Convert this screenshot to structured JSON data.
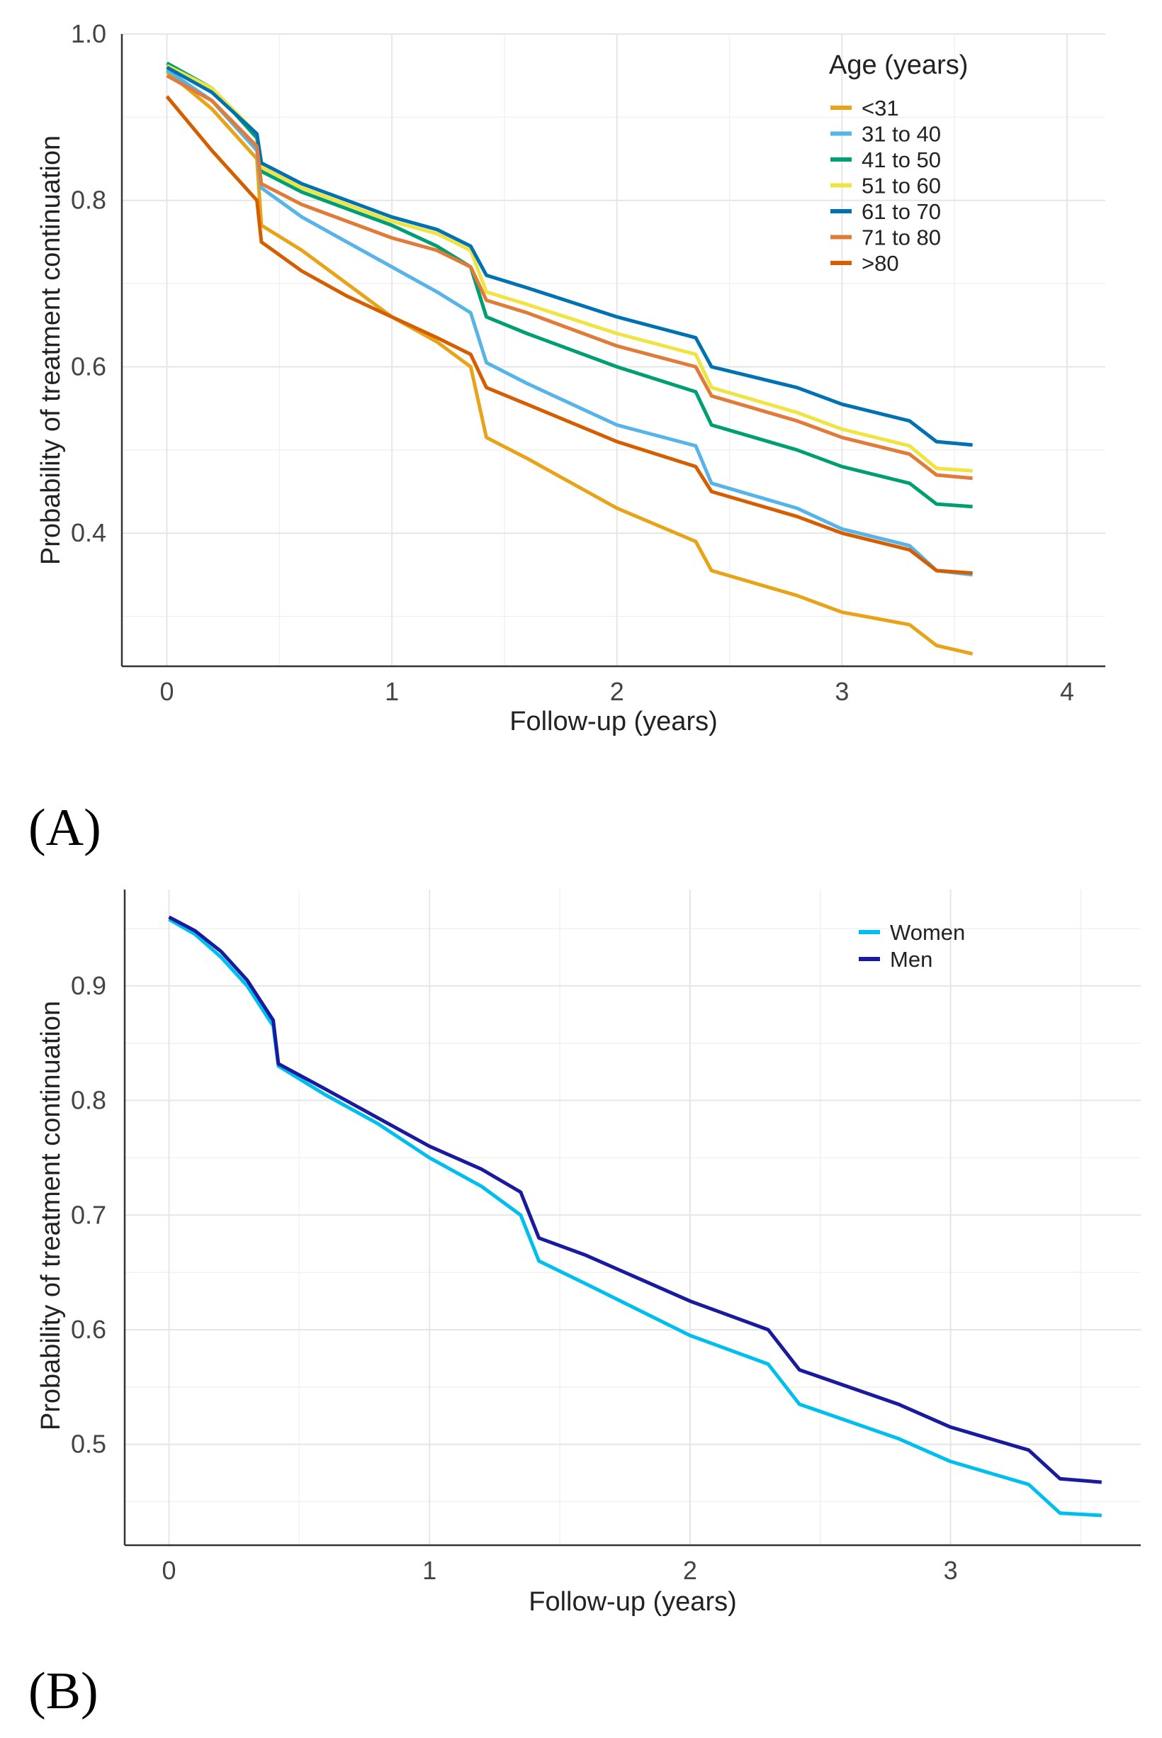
{
  "chart_data": [
    {
      "type": "line",
      "panel_label": "(A)",
      "xlabel": "Follow-up (years)",
      "ylabel": "Probability of treatment continuation",
      "xlim": [
        -0.2,
        4.17
      ],
      "ylim": [
        0.24,
        1.0
      ],
      "xticks": [
        0,
        1,
        2,
        3,
        4
      ],
      "xtick_labels": [
        "0",
        "1",
        "2",
        "3",
        "4"
      ],
      "yticks": [
        0.4,
        0.6,
        0.8,
        1.0
      ],
      "ytick_labels": [
        "0.4",
        "0.6",
        "0.8",
        "1.0"
      ],
      "grid": true,
      "legend_title": "Age (years)",
      "legend_position": "top-right",
      "series": [
        {
          "name": "<31",
          "color": "#E8A317",
          "x": [
            0,
            0.2,
            0.4,
            0.42,
            0.6,
            0.8,
            1.0,
            1.2,
            1.35,
            1.42,
            1.6,
            2.0,
            2.35,
            2.42,
            2.8,
            3.0,
            3.3,
            3.42,
            3.58
          ],
          "y": [
            0.955,
            0.91,
            0.85,
            0.77,
            0.74,
            0.7,
            0.66,
            0.63,
            0.6,
            0.515,
            0.49,
            0.43,
            0.39,
            0.355,
            0.325,
            0.305,
            0.29,
            0.265,
            0.255
          ]
        },
        {
          "name": "31 to 40",
          "color": "#56B4E9",
          "x": [
            0,
            0.2,
            0.4,
            0.42,
            0.6,
            0.8,
            1.0,
            1.2,
            1.35,
            1.42,
            1.6,
            2.0,
            2.35,
            2.42,
            2.8,
            3.0,
            3.3,
            3.42,
            3.58
          ],
          "y": [
            0.957,
            0.92,
            0.86,
            0.815,
            0.78,
            0.75,
            0.72,
            0.69,
            0.665,
            0.605,
            0.58,
            0.53,
            0.505,
            0.46,
            0.43,
            0.405,
            0.385,
            0.355,
            0.35
          ]
        },
        {
          "name": "41 to 50",
          "color": "#009E73",
          "x": [
            0,
            0.2,
            0.4,
            0.42,
            0.6,
            0.8,
            1.0,
            1.2,
            1.35,
            1.42,
            1.6,
            2.0,
            2.35,
            2.42,
            2.8,
            3.0,
            3.3,
            3.42,
            3.58
          ],
          "y": [
            0.965,
            0.935,
            0.875,
            0.835,
            0.81,
            0.79,
            0.77,
            0.745,
            0.72,
            0.66,
            0.64,
            0.6,
            0.57,
            0.53,
            0.5,
            0.48,
            0.46,
            0.435,
            0.432
          ]
        },
        {
          "name": "51 to 60",
          "color": "#F0E442",
          "x": [
            0,
            0.2,
            0.4,
            0.42,
            0.6,
            0.8,
            1.0,
            1.2,
            1.35,
            1.42,
            1.6,
            2.0,
            2.35,
            2.42,
            2.8,
            3.0,
            3.3,
            3.42,
            3.58
          ],
          "y": [
            0.962,
            0.935,
            0.88,
            0.84,
            0.815,
            0.795,
            0.775,
            0.76,
            0.74,
            0.69,
            0.675,
            0.64,
            0.615,
            0.575,
            0.545,
            0.525,
            0.505,
            0.478,
            0.475
          ]
        },
        {
          "name": "61 to 70",
          "color": "#0072B2",
          "x": [
            0,
            0.2,
            0.4,
            0.42,
            0.6,
            0.8,
            1.0,
            1.2,
            1.35,
            1.42,
            1.6,
            2.0,
            2.35,
            2.42,
            2.8,
            3.0,
            3.3,
            3.42,
            3.58
          ],
          "y": [
            0.96,
            0.93,
            0.88,
            0.845,
            0.82,
            0.8,
            0.78,
            0.765,
            0.745,
            0.71,
            0.695,
            0.66,
            0.635,
            0.6,
            0.575,
            0.555,
            0.535,
            0.51,
            0.506
          ]
        },
        {
          "name": "71 to 80",
          "color": "#E07B39",
          "x": [
            0,
            0.2,
            0.4,
            0.42,
            0.6,
            0.8,
            1.0,
            1.2,
            1.35,
            1.42,
            1.6,
            2.0,
            2.35,
            2.42,
            2.8,
            3.0,
            3.3,
            3.42,
            3.58
          ],
          "y": [
            0.95,
            0.92,
            0.865,
            0.82,
            0.795,
            0.775,
            0.755,
            0.74,
            0.72,
            0.68,
            0.665,
            0.625,
            0.6,
            0.565,
            0.535,
            0.515,
            0.495,
            0.47,
            0.466
          ]
        },
        {
          "name": ">80",
          "color": "#D55E00",
          "x": [
            0,
            0.2,
            0.4,
            0.42,
            0.6,
            0.8,
            1.0,
            1.2,
            1.35,
            1.42,
            1.6,
            2.0,
            2.35,
            2.42,
            2.8,
            3.0,
            3.3,
            3.42,
            3.58
          ],
          "y": [
            0.925,
            0.86,
            0.8,
            0.75,
            0.715,
            0.685,
            0.66,
            0.635,
            0.615,
            0.575,
            0.555,
            0.51,
            0.48,
            0.45,
            0.42,
            0.4,
            0.38,
            0.355,
            0.352
          ]
        }
      ]
    },
    {
      "type": "line",
      "panel_label": "(B)",
      "xlabel": "Follow-up (years)",
      "ylabel": "Probability of treatment continuation",
      "xlim": [
        -0.17,
        3.73
      ],
      "ylim": [
        0.412,
        0.984
      ],
      "xticks": [
        0,
        1,
        2,
        3
      ],
      "xtick_labels": [
        "0",
        "1",
        "2",
        "3"
      ],
      "yticks": [
        0.5,
        0.6,
        0.7,
        0.8,
        0.9
      ],
      "ytick_labels": [
        "0.5",
        "0.6",
        "0.7",
        "0.8",
        "0.9"
      ],
      "grid": true,
      "legend_title": "",
      "legend_position": "top-right",
      "series": [
        {
          "name": "Women",
          "color": "#00BFEF",
          "x": [
            0,
            0.1,
            0.2,
            0.3,
            0.4,
            0.42,
            0.6,
            0.8,
            1.0,
            1.2,
            1.35,
            1.42,
            1.6,
            2.0,
            2.3,
            2.42,
            2.8,
            3.0,
            3.3,
            3.42,
            3.58
          ],
          "y": [
            0.958,
            0.945,
            0.925,
            0.9,
            0.865,
            0.83,
            0.805,
            0.78,
            0.75,
            0.725,
            0.7,
            0.66,
            0.64,
            0.595,
            0.57,
            0.535,
            0.505,
            0.485,
            0.465,
            0.44,
            0.438
          ]
        },
        {
          "name": "Men",
          "color": "#1A1A9E",
          "x": [
            0,
            0.1,
            0.2,
            0.3,
            0.4,
            0.42,
            0.6,
            0.8,
            1.0,
            1.2,
            1.35,
            1.42,
            1.6,
            2.0,
            2.3,
            2.42,
            2.8,
            3.0,
            3.3,
            3.42,
            3.58
          ],
          "y": [
            0.96,
            0.948,
            0.93,
            0.905,
            0.87,
            0.832,
            0.81,
            0.785,
            0.76,
            0.74,
            0.72,
            0.68,
            0.665,
            0.625,
            0.6,
            0.565,
            0.535,
            0.515,
            0.495,
            0.47,
            0.467
          ]
        }
      ]
    }
  ]
}
